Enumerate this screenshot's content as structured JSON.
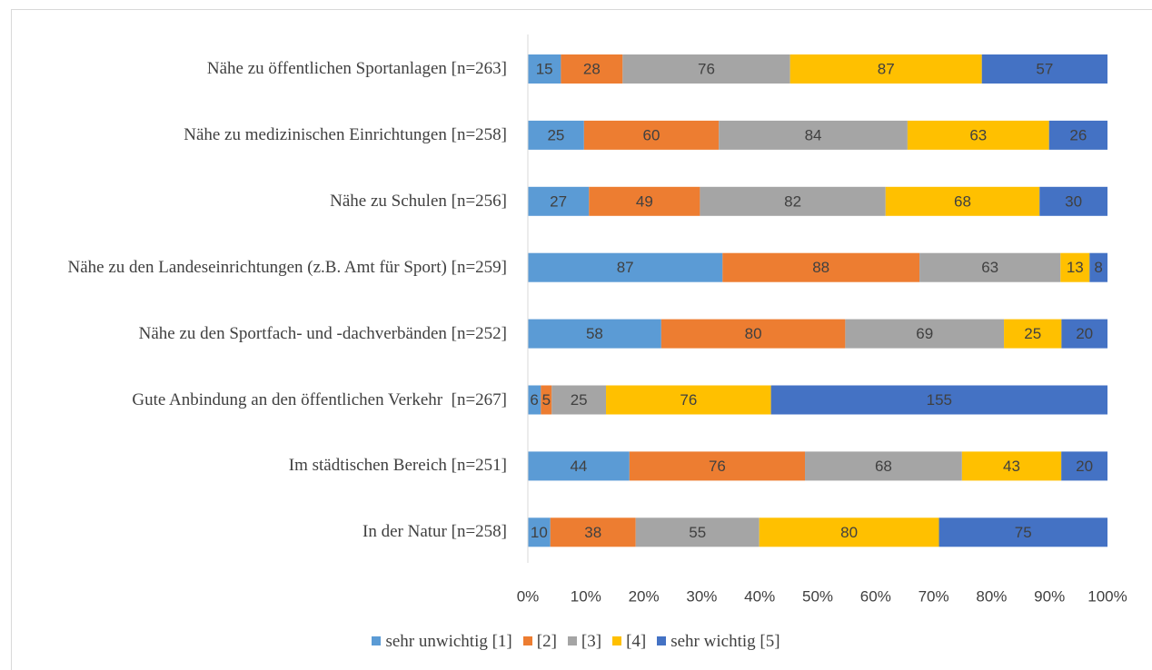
{
  "chart_data": {
    "type": "bar",
    "orientation": "horizontal",
    "stack": "percent",
    "categories": [
      "Nähe zu öffentlichen Sportanlagen [n=263]",
      "Nähe zu medizinischen Einrichtungen [n=258]",
      "Nähe zu Schulen [n=256]",
      "Nähe zu den Landeseinrichtungen (z.B. Amt für Sport) [n=259]",
      "Nähe zu den Sportfach- und -dachverbänden [n=252]",
      "Gute Anbindung an den öffentlichen Verkehr  [n=267]",
      "Im städtischen Bereich [n=251]",
      "In der Natur [n=258]"
    ],
    "series": [
      {
        "name": "sehr unwichtig [1]",
        "color": "#5b9bd5",
        "values": [
          15,
          25,
          27,
          87,
          58,
          6,
          44,
          10
        ]
      },
      {
        "name": "[2]",
        "color": "#ed7d31",
        "values": [
          28,
          60,
          49,
          88,
          80,
          5,
          76,
          38
        ]
      },
      {
        "name": "[3]",
        "color": "#a5a5a5",
        "values": [
          76,
          84,
          82,
          63,
          69,
          25,
          68,
          55
        ]
      },
      {
        "name": "[4]",
        "color": "#ffc000",
        "values": [
          87,
          63,
          68,
          13,
          25,
          76,
          43,
          80
        ]
      },
      {
        "name": "sehr wichtig [5]",
        "color": "#4472c4",
        "values": [
          57,
          26,
          30,
          8,
          20,
          155,
          20,
          75
        ]
      }
    ],
    "xlim": [
      0,
      100
    ],
    "xticks": [
      {
        "value": 0,
        "label": "0%"
      },
      {
        "value": 10,
        "label": "10%"
      },
      {
        "value": 20,
        "label": "20%"
      },
      {
        "value": 30,
        "label": "30%"
      },
      {
        "value": 40,
        "label": "40%"
      },
      {
        "value": 50,
        "label": "50%"
      },
      {
        "value": 60,
        "label": "60%"
      },
      {
        "value": 70,
        "label": "70%"
      },
      {
        "value": 80,
        "label": "80%"
      },
      {
        "value": 90,
        "label": "90%"
      },
      {
        "value": 100,
        "label": "100%"
      }
    ],
    "grid": false,
    "legend": "bottom"
  }
}
